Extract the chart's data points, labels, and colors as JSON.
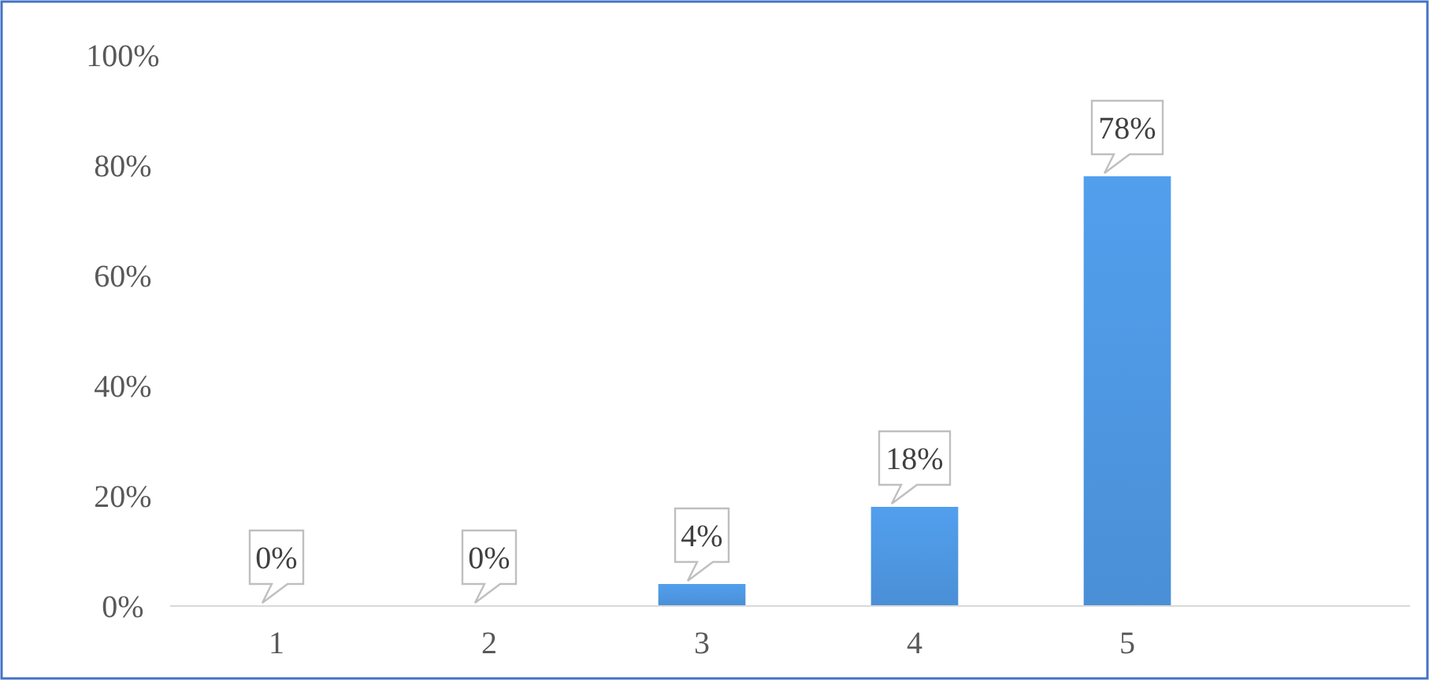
{
  "chart_data": {
    "type": "bar",
    "categories": [
      "1",
      "2",
      "3",
      "4",
      "5"
    ],
    "values": [
      0,
      0,
      4,
      18,
      78
    ],
    "value_labels": [
      "0%",
      "0%",
      "4%",
      "18%",
      "78%"
    ],
    "color": "#4a8fd6",
    "ylim": [
      0,
      100
    ],
    "yticks": [
      {
        "value": 0,
        "label": "0%"
      },
      {
        "value": 20,
        "label": "20%"
      },
      {
        "value": 40,
        "label": "40%"
      },
      {
        "value": 60,
        "label": "60%"
      },
      {
        "value": 80,
        "label": "80%"
      },
      {
        "value": 100,
        "label": "100%"
      }
    ],
    "grid": false
  }
}
